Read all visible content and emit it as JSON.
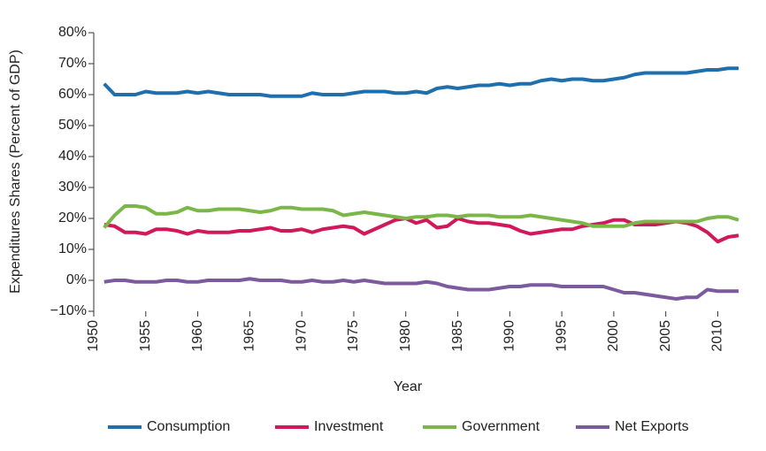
{
  "chart_data": {
    "type": "line",
    "x_label": "Year",
    "y_label": "Expenditures Shares (Percent of GDP)",
    "x": [
      1951,
      1952,
      1953,
      1954,
      1955,
      1956,
      1957,
      1958,
      1959,
      1960,
      1961,
      1962,
      1963,
      1964,
      1965,
      1966,
      1967,
      1968,
      1969,
      1970,
      1971,
      1972,
      1973,
      1974,
      1975,
      1976,
      1977,
      1978,
      1979,
      1980,
      1981,
      1982,
      1983,
      1984,
      1985,
      1986,
      1987,
      1988,
      1989,
      1990,
      1991,
      1992,
      1993,
      1994,
      1995,
      1996,
      1997,
      1998,
      1999,
      2000,
      2001,
      2002,
      2003,
      2004,
      2005,
      2006,
      2007,
      2008,
      2009,
      2010,
      2011,
      2012
    ],
    "series": [
      {
        "name": "Consumption",
        "color": "#1f6fad",
        "values": [
          63.5,
          60,
          60,
          60,
          61,
          60.5,
          60.5,
          60.5,
          61,
          60.5,
          61,
          60.5,
          60,
          60,
          60,
          60,
          59.5,
          59.5,
          59.5,
          59.5,
          60.5,
          60,
          60,
          60,
          60.5,
          61,
          61,
          61,
          60.5,
          60.5,
          61,
          60.5,
          62,
          62.5,
          62,
          62.5,
          63,
          63,
          63.5,
          63,
          63.5,
          63.5,
          64.5,
          65,
          64.5,
          65,
          65,
          64.5,
          64.5,
          65,
          65.5,
          66.5,
          67,
          67,
          67,
          67,
          67,
          67.5,
          68,
          68,
          68.5,
          68.5
        ]
      },
      {
        "name": "Investment",
        "color": "#d0185a",
        "values": [
          18,
          17.5,
          15.5,
          15.5,
          15,
          16.5,
          16.5,
          16,
          15,
          16,
          15.5,
          15.5,
          15.5,
          16,
          16,
          16.5,
          17,
          16,
          16,
          16.5,
          15.5,
          16.5,
          17,
          17.5,
          17,
          15,
          16.5,
          18,
          19.5,
          20,
          18.5,
          19.5,
          17,
          17.5,
          20,
          19,
          18.5,
          18.5,
          18,
          17.5,
          16,
          15,
          15.5,
          16,
          16.5,
          16.5,
          17.5,
          18,
          18.5,
          19.5,
          19.5,
          18,
          18,
          18,
          18.5,
          19,
          18.5,
          17.5,
          15.5,
          12.5,
          14,
          14.5
        ]
      },
      {
        "name": "Government",
        "color": "#7ab648",
        "values": [
          17,
          21,
          24,
          24,
          23.5,
          21.5,
          21.5,
          22,
          23.5,
          22.5,
          22.5,
          23,
          23,
          23,
          22.5,
          22,
          22.5,
          23.5,
          23.5,
          23,
          23,
          23,
          22.5,
          21,
          21.5,
          22,
          21.5,
          21,
          20.5,
          20,
          20.5,
          20.5,
          21,
          21,
          20.5,
          21,
          21,
          21,
          20.5,
          20.5,
          20.5,
          21,
          20.5,
          20,
          19.5,
          19,
          18.5,
          17.5,
          17.5,
          17.5,
          17.5,
          18.5,
          19,
          19,
          19,
          19,
          19,
          19,
          20,
          20.5,
          20.5,
          19.5
        ]
      },
      {
        "name": "Net Exports",
        "color": "#7b5a9e",
        "values": [
          -0.5,
          0,
          0,
          -0.5,
          -0.5,
          -0.5,
          0,
          0,
          -0.5,
          -0.5,
          0,
          0,
          0,
          0,
          0.5,
          0,
          0,
          0,
          -0.5,
          -0.5,
          0,
          -0.5,
          -0.5,
          0,
          -0.5,
          0,
          -0.5,
          -1,
          -1,
          -1,
          -1,
          -0.5,
          -1,
          -2,
          -2.5,
          -3,
          -3,
          -3,
          -2.5,
          -2,
          -2,
          -1.5,
          -1.5,
          -1.5,
          -2,
          -2,
          -2,
          -2,
          -2,
          -3,
          -4,
          -4,
          -4.5,
          -5,
          -5.5,
          -6,
          -5.5,
          -5.5,
          -3,
          -3.5,
          -3.5,
          -3.5
        ]
      }
    ],
    "xlim": [
      1950,
      2012
    ],
    "xticks": [
      1950,
      1955,
      1960,
      1965,
      1970,
      1975,
      1980,
      1985,
      1990,
      1995,
      2000,
      2005,
      2010
    ],
    "ylim": [
      -10,
      80
    ],
    "yticks": [
      {
        "value": -10,
        "label": "−10%"
      },
      {
        "value": 0,
        "label": "0%"
      },
      {
        "value": 10,
        "label": "10%"
      },
      {
        "value": 20,
        "label": "20%"
      },
      {
        "value": 30,
        "label": "30%"
      },
      {
        "value": 40,
        "label": "40%"
      },
      {
        "value": 50,
        "label": "50%"
      },
      {
        "value": 60,
        "label": "60%"
      },
      {
        "value": 70,
        "label": "70%"
      },
      {
        "value": 80,
        "label": "80%"
      }
    ]
  }
}
